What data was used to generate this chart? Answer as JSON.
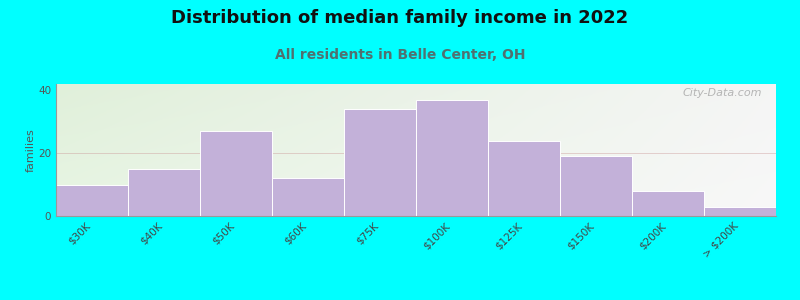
{
  "title": "Distribution of median family income in 2022",
  "subtitle": "All residents in Belle Center, OH",
  "ylabel": "families",
  "background_color": "#00FFFF",
  "bar_color": "#C3B1D9",
  "bar_edge_color": "#FFFFFF",
  "categories": [
    "$30K",
    "$40K",
    "$50K",
    "$60K",
    "$75K",
    "$100K",
    "$125K",
    "$150K",
    "$200K",
    "> $200K"
  ],
  "values": [
    10,
    15,
    27,
    12,
    34,
    37,
    24,
    19,
    8,
    3
  ],
  "ylim": [
    0,
    42
  ],
  "yticks": [
    0,
    20,
    40
  ],
  "watermark": "City-Data.com",
  "plot_bg_top_left_color": "#E0F0DA",
  "plot_bg_right_color": "#F0F5EE",
  "plot_bg_top_right_color": "#F5F5F5",
  "title_fontsize": 13,
  "subtitle_fontsize": 10,
  "subtitle_color": "#507070",
  "ylabel_fontsize": 8,
  "tick_fontsize": 7.5
}
